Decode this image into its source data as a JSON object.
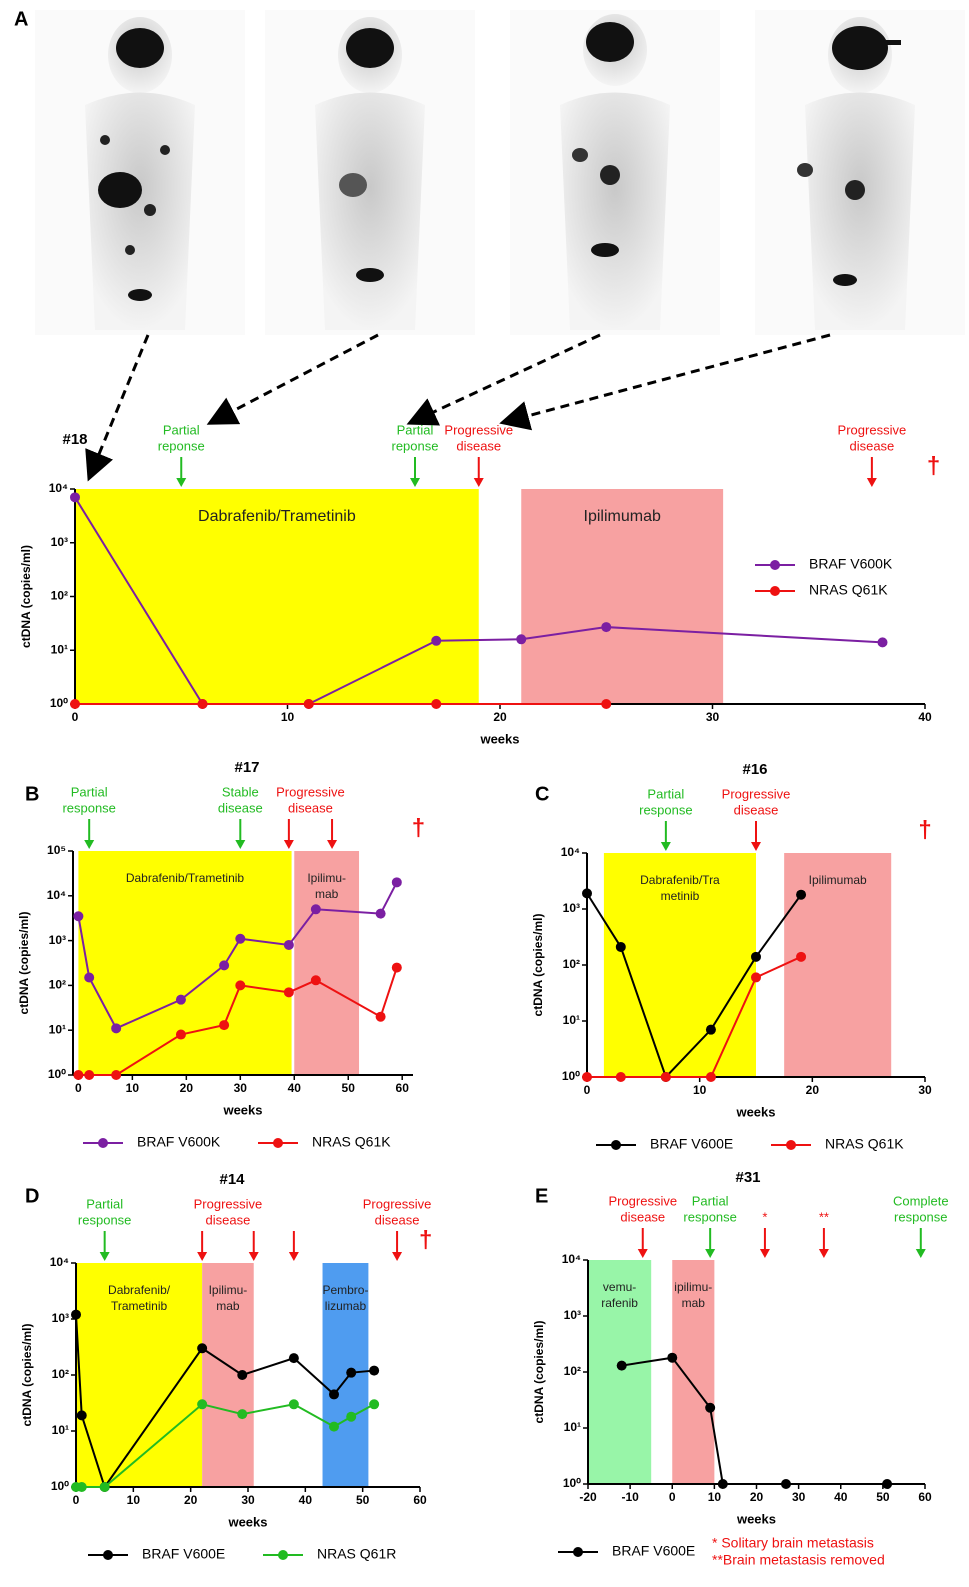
{
  "chart_data": [
    {
      "type": "line",
      "panel": "A",
      "title": "#18",
      "xlabel": "weeks",
      "ylabel": "ctDNA (copies/ml)",
      "yscale": "log",
      "grid": false,
      "legend": "right",
      "xlim": [
        0,
        40
      ],
      "xticks": [
        0,
        10,
        20,
        30,
        40
      ],
      "ylim": [
        1,
        10000
      ],
      "yticks": [
        {
          "value": 1,
          "label": "10⁰"
        },
        {
          "value": 10,
          "label": "10¹"
        },
        {
          "value": 100,
          "label": "10²"
        },
        {
          "value": 1000,
          "label": "10³"
        },
        {
          "value": 10000,
          "label": "10⁴"
        }
      ],
      "regions": [
        {
          "start": 0,
          "end": 19,
          "color": "#ffff00",
          "label": [
            "Dabrafenib/Trametinib"
          ]
        },
        {
          "start": 21,
          "end": 30.5,
          "color": "#f7a1a1",
          "label": [
            "Ipilimumab"
          ]
        }
      ],
      "annotations": [
        {
          "label": [
            "Partial",
            "reponse"
          ],
          "color": "#22bb22",
          "arrows": [
            5
          ]
        },
        {
          "label": [
            "Partial",
            "reponse"
          ],
          "color": "#22bb22",
          "arrows": [
            16
          ]
        },
        {
          "label": [
            "Progressive",
            "disease"
          ],
          "color": "#ee1111",
          "arrows": [
            19
          ]
        },
        {
          "label": [
            "Progressive",
            "disease"
          ],
          "color": "#ee1111",
          "arrows": [
            37.5
          ]
        },
        {
          "label": [
            "†"
          ],
          "color": "#ee1111",
          "x": 40.4
        }
      ],
      "series": [
        {
          "name": "BRAF V600K",
          "color": "#7b1fa2",
          "x": [
            0,
            6,
            11,
            17,
            21,
            25,
            38
          ],
          "values": [
            7000,
            1,
            1,
            15,
            16,
            27,
            14
          ]
        },
        {
          "name": "NRAS Q61K",
          "color": "#ee1111",
          "x": [
            0,
            6,
            11,
            17,
            25
          ],
          "values": [
            1,
            1,
            1,
            1,
            1
          ]
        }
      ]
    },
    {
      "type": "line",
      "panel": "B",
      "title": "#17",
      "xlabel": "weeks",
      "ylabel": "ctDNA (copies/ml)",
      "yscale": "log",
      "grid": false,
      "legend": "below",
      "xlim": [
        -1,
        62
      ],
      "xticks": [
        0,
        10,
        20,
        30,
        40,
        50,
        60
      ],
      "ylim": [
        1,
        100000
      ],
      "yticks": [
        {
          "value": 1,
          "label": "10⁰"
        },
        {
          "value": 10,
          "label": "10¹"
        },
        {
          "value": 100,
          "label": "10²"
        },
        {
          "value": 1000,
          "label": "10³"
        },
        {
          "value": 10000,
          "label": "10⁴"
        },
        {
          "value": 100000,
          "label": "10⁵"
        }
      ],
      "regions": [
        {
          "start": 0,
          "end": 39.5,
          "color": "#ffff00",
          "label": [
            "Dabrafenib/Trametinib"
          ]
        },
        {
          "start": 40,
          "end": 52,
          "color": "#f7a1a1",
          "label": [
            "Ipilimu-",
            "mab"
          ]
        }
      ],
      "annotations": [
        {
          "label": [
            "Partial",
            "response"
          ],
          "color": "#22bb22",
          "arrows": [
            2
          ]
        },
        {
          "label": [
            "Stable",
            "disease"
          ],
          "color": "#22bb22",
          "arrows": [
            30
          ]
        },
        {
          "label": [
            "Progressive",
            "disease"
          ],
          "color": "#ee1111",
          "arrows": [
            39,
            47
          ]
        },
        {
          "label": [
            "†"
          ],
          "color": "#ee1111",
          "x": 63
        }
      ],
      "series": [
        {
          "name": "BRAF V600K",
          "color": "#7b1fa2",
          "x": [
            0,
            2,
            7,
            19,
            27,
            30,
            39,
            44,
            56,
            59
          ],
          "values": [
            3500,
            150,
            11,
            48,
            280,
            1100,
            800,
            5000,
            4000,
            20000
          ]
        },
        {
          "name": "NRAS Q61K",
          "color": "#ee1111",
          "x": [
            0,
            2,
            7,
            19,
            27,
            30,
            39,
            44,
            56,
            59
          ],
          "values": [
            1,
            1,
            1,
            8,
            13,
            100,
            70,
            130,
            20,
            250
          ]
        }
      ]
    },
    {
      "type": "line",
      "panel": "C",
      "title": "#16",
      "xlabel": "weeks",
      "ylabel": "ctDNA (copies/ml)",
      "yscale": "log",
      "grid": false,
      "legend": "below",
      "xlim": [
        0,
        30
      ],
      "xticks": [
        0,
        10,
        20,
        30
      ],
      "ylim": [
        1,
        10000
      ],
      "yticks": [
        {
          "value": 1,
          "label": "10⁰"
        },
        {
          "value": 10,
          "label": "10¹"
        },
        {
          "value": 100,
          "label": "10²"
        },
        {
          "value": 1000,
          "label": "10³"
        },
        {
          "value": 10000,
          "label": "10⁴"
        }
      ],
      "regions": [
        {
          "start": 1.5,
          "end": 15,
          "color": "#ffff00",
          "label": [
            "Dabrafenib/Tra",
            "metinib"
          ]
        },
        {
          "start": 17.5,
          "end": 27,
          "color": "#f7a1a1",
          "label": [
            "Ipilimumab"
          ]
        }
      ],
      "annotations": [
        {
          "label": [
            "Partial",
            "response"
          ],
          "color": "#22bb22",
          "arrows": [
            7
          ]
        },
        {
          "label": [
            "Progressive",
            "disease"
          ],
          "color": "#ee1111",
          "arrows": [
            15
          ]
        },
        {
          "label": [
            "†"
          ],
          "color": "#ee1111",
          "x": 30
        }
      ],
      "series": [
        {
          "name": "BRAF V600E",
          "color": "#000000",
          "x": [
            0,
            3,
            7,
            11,
            15,
            19
          ],
          "values": [
            1900,
            210,
            1,
            7,
            140,
            1800
          ]
        },
        {
          "name": "NRAS Q61K",
          "color": "#ee1111",
          "x": [
            0,
            3,
            7,
            11,
            15,
            19
          ],
          "values": [
            1,
            1,
            1,
            1,
            60,
            140
          ]
        }
      ]
    },
    {
      "type": "line",
      "panel": "D",
      "title": "#14",
      "xlabel": "weeks",
      "ylabel": "ctDNA (copies/ml)",
      "yscale": "log",
      "grid": false,
      "legend": "below",
      "xlim": [
        0,
        60
      ],
      "xticks": [
        0,
        10,
        20,
        30,
        40,
        50,
        60
      ],
      "ylim": [
        1,
        10000
      ],
      "yticks": [
        {
          "value": 1,
          "label": "10⁰"
        },
        {
          "value": 10,
          "label": "10¹"
        },
        {
          "value": 100,
          "label": "10²"
        },
        {
          "value": 1000,
          "label": "10³"
        },
        {
          "value": 10000,
          "label": "10⁴"
        }
      ],
      "regions": [
        {
          "start": 0,
          "end": 22,
          "color": "#ffff00",
          "label": [
            "Dabrafenib/",
            "Trametinib"
          ]
        },
        {
          "start": 22,
          "end": 31,
          "color": "#f7a1a1",
          "label": [
            "Ipilimu-",
            "mab"
          ]
        },
        {
          "start": 43,
          "end": 51,
          "color": "#4f9cf0",
          "label": [
            "Pembro-",
            "lizumab"
          ]
        }
      ],
      "annotations": [
        {
          "label": [
            "Partial",
            "response"
          ],
          "color": "#22bb22",
          "arrows": [
            5
          ]
        },
        {
          "label": [
            "Progressive",
            "disease"
          ],
          "color": "#ee1111",
          "arrows": [
            22,
            31
          ]
        },
        {
          "color": "#ee1111",
          "arrows": [
            38
          ]
        },
        {
          "label": [
            "Progressive",
            "disease"
          ],
          "color": "#ee1111",
          "arrows": [
            56
          ]
        },
        {
          "label": [
            "†"
          ],
          "color": "#ee1111",
          "x": 61
        }
      ],
      "series": [
        {
          "name": "BRAF V600E",
          "color": "#000000",
          "x": [
            0,
            1,
            5,
            22,
            29,
            38,
            45,
            48,
            52
          ],
          "values": [
            1200,
            19,
            1,
            300,
            100,
            200,
            45,
            110,
            120
          ]
        },
        {
          "name": "NRAS Q61R",
          "color": "#22bb22",
          "x": [
            0,
            1,
            5,
            22,
            29,
            38,
            45,
            48,
            52
          ],
          "values": [
            1,
            1,
            1,
            30,
            20,
            30,
            12,
            18,
            30
          ]
        }
      ]
    },
    {
      "type": "line",
      "panel": "E",
      "title": "#31",
      "xlabel": "weeks",
      "ylabel": "ctDNA (copies/ml)",
      "yscale": "log",
      "grid": false,
      "legend": "below",
      "xlim": [
        -20,
        60
      ],
      "xticks": [
        -20,
        -10,
        0,
        10,
        20,
        30,
        40,
        50,
        60
      ],
      "ylim": [
        1,
        10000
      ],
      "yticks": [
        {
          "value": 1,
          "label": "10⁰"
        },
        {
          "value": 10,
          "label": "10¹"
        },
        {
          "value": 100,
          "label": "10²"
        },
        {
          "value": 1000,
          "label": "10³"
        },
        {
          "value": 10000,
          "label": "10⁴"
        }
      ],
      "regions": [
        {
          "start": -20,
          "end": -5,
          "color": "#98f5a8",
          "label": [
            "vemu-",
            "rafenib"
          ]
        },
        {
          "start": 0,
          "end": 10,
          "color": "#f7a1a1",
          "label": [
            "ipilimu-",
            "mab"
          ]
        }
      ],
      "annotations": [
        {
          "label": [
            "Progressive",
            "disease"
          ],
          "color": "#ee1111",
          "arrows": [
            -7
          ]
        },
        {
          "label": [
            "Partial",
            "response"
          ],
          "color": "#22bb22",
          "arrows": [
            9
          ]
        },
        {
          "label": [
            "*"
          ],
          "color": "#ee1111",
          "arrows": [
            22
          ]
        },
        {
          "label": [
            "**"
          ],
          "color": "#ee1111",
          "arrows": [
            36
          ]
        },
        {
          "label": [
            "Complete",
            "response"
          ],
          "color": "#22bb22",
          "arrows": [
            59
          ]
        }
      ],
      "footnotes": [
        "* Solitary brain metastasis",
        "**Brain metastasis removed"
      ],
      "series": [
        {
          "name": "BRAF V600E",
          "color": "#000000",
          "x": [
            -12,
            0,
            9,
            12,
            27,
            51
          ],
          "values": [
            130,
            180,
            23,
            1,
            1,
            1
          ]
        }
      ]
    }
  ]
}
